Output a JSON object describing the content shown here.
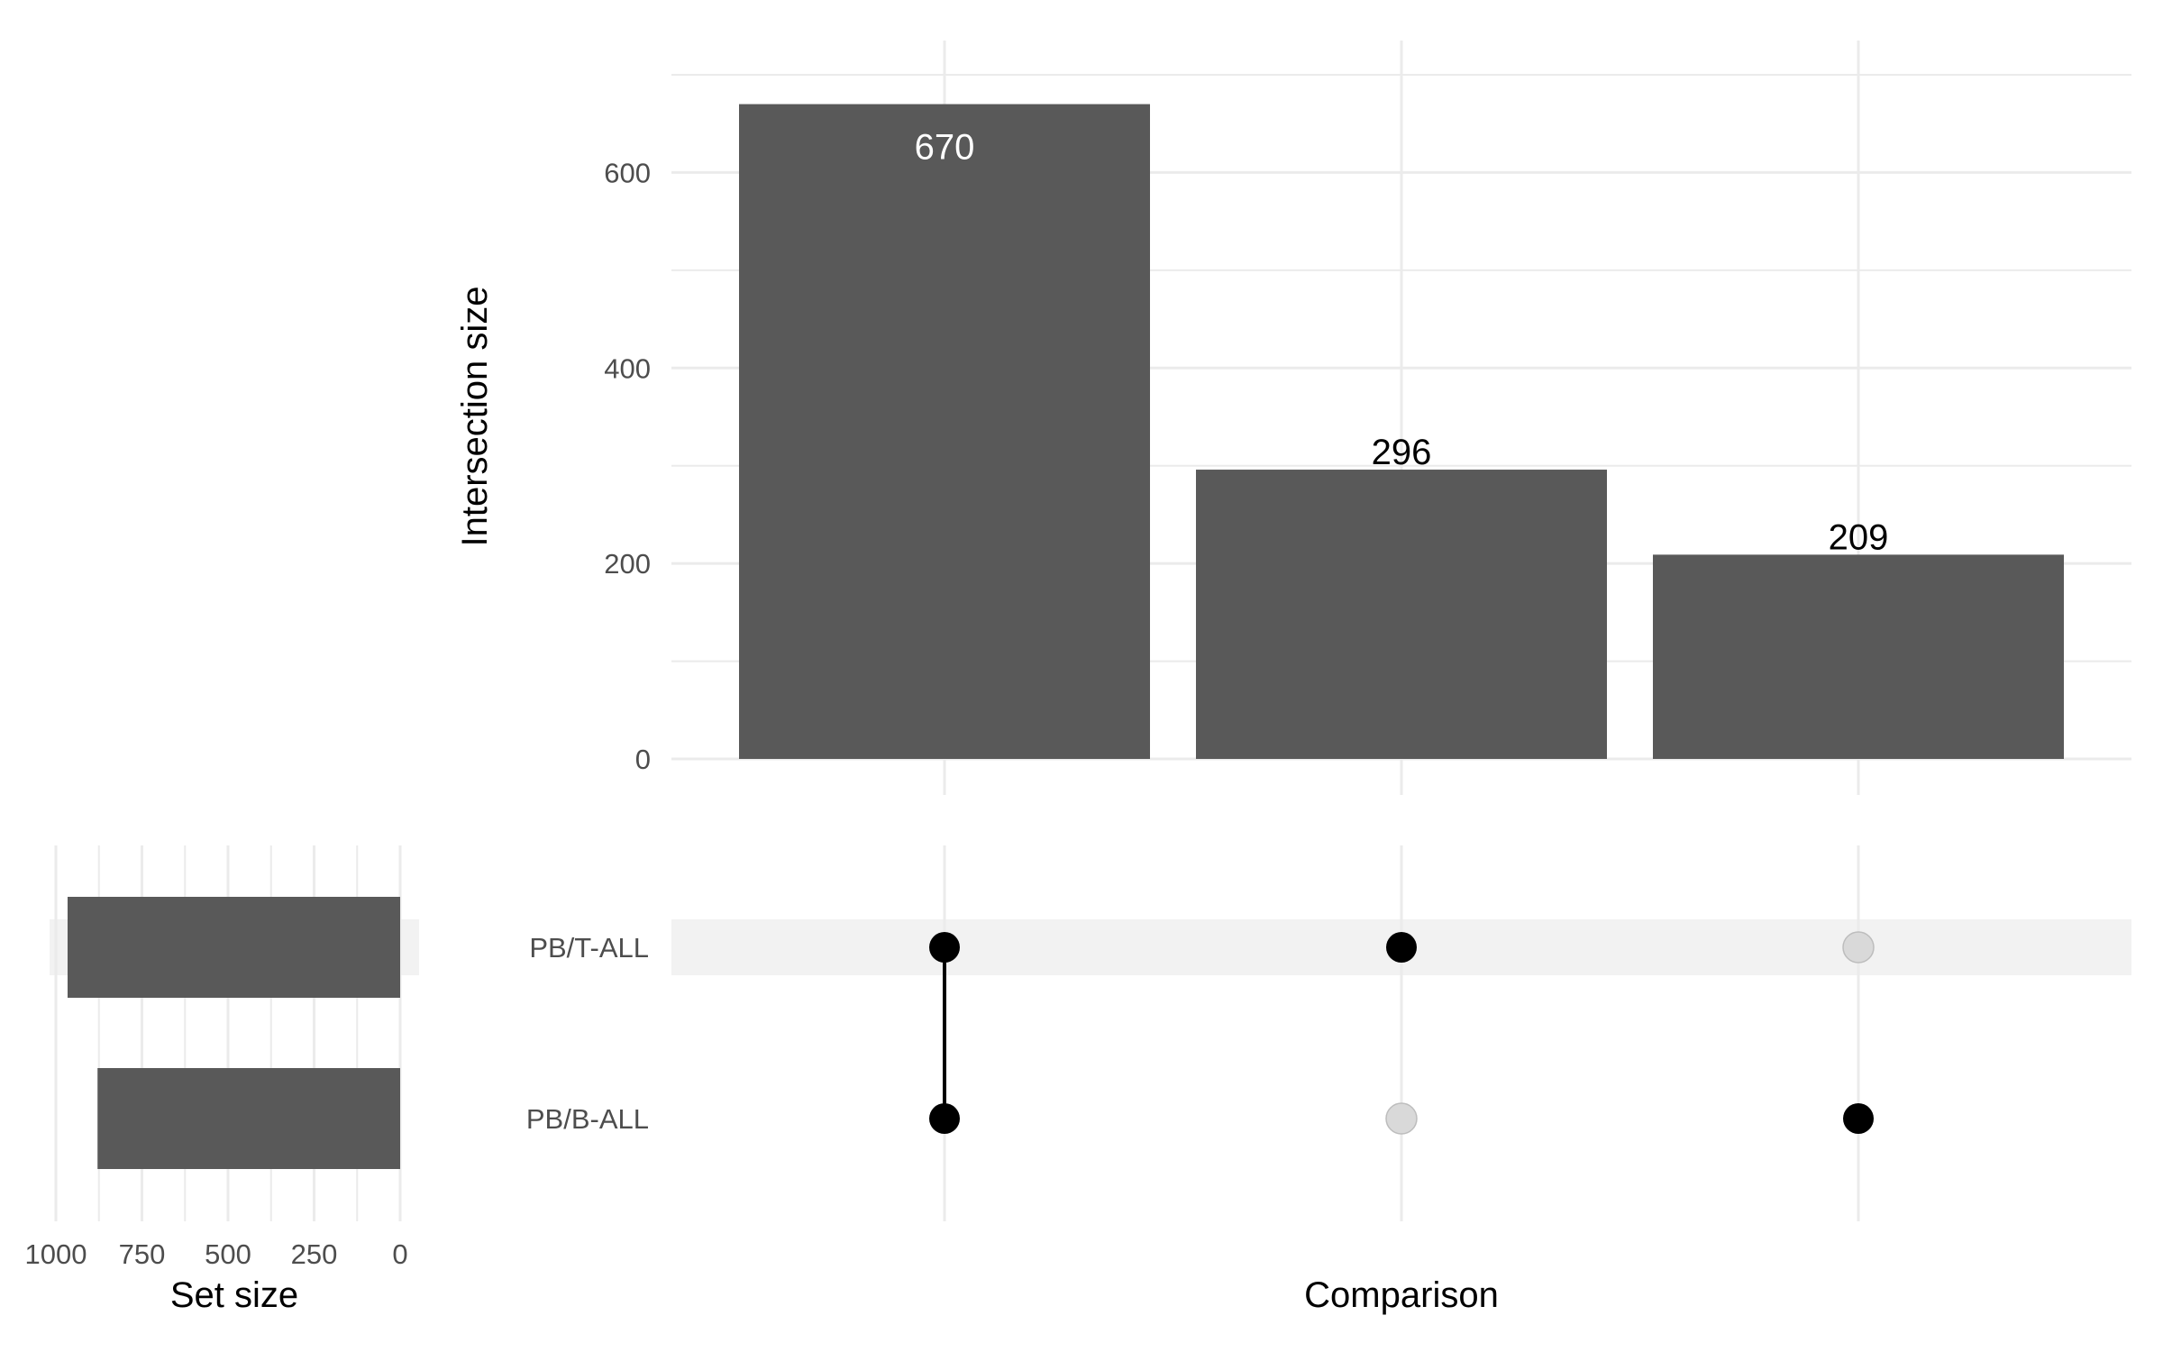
{
  "chart_data": {
    "type": "upset",
    "intersections": {
      "type": "bar",
      "categories": [
        "PB/T-ALL & PB/B-ALL",
        "PB/T-ALL",
        "PB/B-ALL"
      ],
      "values": [
        670,
        296,
        209
      ],
      "value_labels": [
        "670",
        "296",
        "209"
      ],
      "ylabel": "Intersection size",
      "ylim": [
        0,
        700
      ],
      "yticks": [
        0,
        200,
        400,
        600
      ],
      "yticks_labels": [
        "0",
        "200",
        "400",
        "600"
      ],
      "grid": true
    },
    "matrix": {
      "sets": [
        "PB/T-ALL",
        "PB/B-ALL"
      ],
      "membership": [
        [
          true,
          true
        ],
        [
          true,
          false
        ],
        [
          false,
          true
        ]
      ],
      "xlabel": "Comparison"
    },
    "set_sizes": {
      "type": "bar",
      "orientation": "horizontal-reversed",
      "sets": [
        "PB/T-ALL",
        "PB/B-ALL"
      ],
      "values": [
        966,
        879
      ],
      "xlim": [
        0,
        1000
      ],
      "xticks": [
        1000,
        750,
        500,
        250,
        0
      ],
      "xticks_labels": [
        "1000",
        "750",
        "500",
        "250",
        "0"
      ],
      "xlabel": "Set size"
    },
    "colors": {
      "bar": "#595959",
      "grid": "#ebebeb",
      "dot_active": "#000000",
      "dot_inactive": "#d9d9d9",
      "row_stripe": "#f2f2f2",
      "label_inside": "#ffffff",
      "label_outside": "#000000"
    }
  }
}
